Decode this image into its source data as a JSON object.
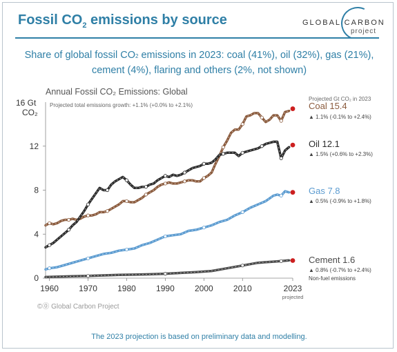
{
  "header": {
    "title_pre": "Fossil CO",
    "title_sub": "2",
    "title_post": " emissions by source",
    "logo_top": "GLOBAL CARBON",
    "logo_bottom": "project"
  },
  "subtitle": {
    "line1_pre": "Share of global fossil CO",
    "line1_sub": "2",
    "line1_post": " emissions in 2023: coal (41%), oil (32%), gas (21%),",
    "line2": "cement (4%), flaring and others (2%, not shown)"
  },
  "footnote": "The 2023 projection is based on preliminary data and modelling.",
  "credit": "©⓪ Global Carbon Project",
  "colors": {
    "accent": "#2f7fa6",
    "coal": "#8a5a3c",
    "oil": "#2b2b2b",
    "gas": "#5b9bd0",
    "cement": "#4a4a4a",
    "projection_dot": "#cc1f1f"
  },
  "chart_data": {
    "type": "line",
    "title": "Annual Fossil CO₂ Emissions: Global",
    "subtitle": "Projected total emissions growth: +1.1% (+0.0% to +2.1%)",
    "ylabel_line1": "16 Gt",
    "ylabel_line2": "CO₂",
    "ylim": [
      0,
      16
    ],
    "xlim": [
      1959,
      2023
    ],
    "yticks": [
      0,
      4,
      8,
      12
    ],
    "xticks": [
      "1960",
      "1970",
      "1980",
      "1990",
      "2000",
      "2010",
      "2023"
    ],
    "x_proj_label": "projected",
    "legend_header": "Projected Gt CO₂ in 2023",
    "non_fuel_label": "Non-fuel emissions",
    "grid": false,
    "series": [
      {
        "name": "Coal 15.4",
        "key": "coal",
        "growth": "▲ 1.1% (-0.1% to +2.4%)",
        "x": [
          1959,
          1960,
          1961,
          1962,
          1963,
          1964,
          1965,
          1966,
          1967,
          1968,
          1969,
          1970,
          1971,
          1972,
          1973,
          1974,
          1975,
          1976,
          1977,
          1978,
          1979,
          1980,
          1981,
          1982,
          1983,
          1984,
          1985,
          1986,
          1987,
          1988,
          1989,
          1990,
          1991,
          1992,
          1993,
          1994,
          1995,
          1996,
          1997,
          1998,
          1999,
          2000,
          2001,
          2002,
          2003,
          2004,
          2005,
          2006,
          2007,
          2008,
          2009,
          2010,
          2011,
          2012,
          2013,
          2014,
          2015,
          2016,
          2017,
          2018,
          2019,
          2020,
          2021,
          2022,
          2023
        ],
        "y": [
          4.8,
          5.0,
          4.9,
          5.0,
          5.2,
          5.3,
          5.3,
          5.4,
          5.3,
          5.4,
          5.6,
          5.7,
          5.7,
          5.8,
          6.0,
          6.0,
          6.1,
          6.3,
          6.5,
          6.7,
          7.0,
          7.0,
          6.9,
          6.9,
          7.1,
          7.3,
          7.6,
          7.8,
          8.0,
          8.3,
          8.5,
          8.6,
          8.7,
          8.6,
          8.6,
          8.7,
          8.8,
          8.9,
          8.9,
          8.8,
          8.8,
          9.1,
          9.3,
          9.6,
          10.4,
          11.1,
          11.9,
          12.5,
          13.2,
          13.5,
          13.5,
          14.0,
          14.7,
          14.8,
          15.0,
          15.0,
          14.6,
          14.2,
          14.4,
          14.8,
          14.8,
          14.3,
          15.1,
          15.2,
          15.4
        ]
      },
      {
        "name": "Oil 12.1",
        "key": "oil",
        "growth": "▲ 1.5% (+0.6% to +2.3%)",
        "x": [
          1959,
          1960,
          1961,
          1962,
          1963,
          1964,
          1965,
          1966,
          1967,
          1968,
          1969,
          1970,
          1971,
          1972,
          1973,
          1974,
          1975,
          1976,
          1977,
          1978,
          1979,
          1980,
          1981,
          1982,
          1983,
          1984,
          1985,
          1986,
          1987,
          1988,
          1989,
          1990,
          1991,
          1992,
          1993,
          1994,
          1995,
          1996,
          1997,
          1998,
          1999,
          2000,
          2001,
          2002,
          2003,
          2004,
          2005,
          2006,
          2007,
          2008,
          2009,
          2010,
          2011,
          2012,
          2013,
          2014,
          2015,
          2016,
          2017,
          2018,
          2019,
          2020,
          2021,
          2022,
          2023
        ],
        "y": [
          2.8,
          3.0,
          3.2,
          3.5,
          3.8,
          4.1,
          4.4,
          4.8,
          5.1,
          5.6,
          6.1,
          6.7,
          7.2,
          7.7,
          8.2,
          8.0,
          8.0,
          8.5,
          8.8,
          9.0,
          9.2,
          8.9,
          8.5,
          8.2,
          8.2,
          8.3,
          8.3,
          8.5,
          8.6,
          8.9,
          9.1,
          9.3,
          9.2,
          9.4,
          9.3,
          9.4,
          9.6,
          9.8,
          10.0,
          10.1,
          10.2,
          10.4,
          10.4,
          10.5,
          10.8,
          11.2,
          11.3,
          11.4,
          11.4,
          11.4,
          11.1,
          11.4,
          11.5,
          11.6,
          11.7,
          11.8,
          12.0,
          12.2,
          12.3,
          12.4,
          12.4,
          10.9,
          11.6,
          11.9,
          12.1
        ]
      },
      {
        "name": "Gas 7.8",
        "key": "gas",
        "growth": "▲ 0.5% (-0.9% to +1.8%)",
        "x": [
          1959,
          1960,
          1962,
          1964,
          1966,
          1968,
          1970,
          1972,
          1974,
          1976,
          1978,
          1980,
          1982,
          1984,
          1986,
          1988,
          1990,
          1992,
          1994,
          1996,
          1998,
          2000,
          2002,
          2004,
          2006,
          2008,
          2010,
          2012,
          2014,
          2016,
          2018,
          2019,
          2020,
          2021,
          2022,
          2023
        ],
        "y": [
          0.8,
          0.9,
          1.0,
          1.2,
          1.4,
          1.6,
          1.8,
          2.0,
          2.2,
          2.3,
          2.5,
          2.6,
          2.7,
          3.0,
          3.2,
          3.5,
          3.8,
          3.9,
          4.0,
          4.3,
          4.4,
          4.6,
          4.8,
          5.1,
          5.3,
          5.7,
          6.0,
          6.4,
          6.7,
          7.0,
          7.5,
          7.6,
          7.5,
          7.9,
          7.8,
          7.8
        ]
      },
      {
        "name": "Cement 1.6",
        "key": "cement",
        "growth": "▲ 0.8% (-0.7% to +2.4%)",
        "x": [
          1959,
          1962,
          1966,
          1970,
          1974,
          1978,
          1982,
          1986,
          1990,
          1994,
          1998,
          2002,
          2006,
          2010,
          2014,
          2018,
          2020,
          2022,
          2023
        ],
        "y": [
          0.1,
          0.13,
          0.17,
          0.2,
          0.25,
          0.3,
          0.32,
          0.35,
          0.4,
          0.48,
          0.55,
          0.65,
          0.9,
          1.15,
          1.4,
          1.5,
          1.55,
          1.62,
          1.6
        ]
      }
    ]
  }
}
